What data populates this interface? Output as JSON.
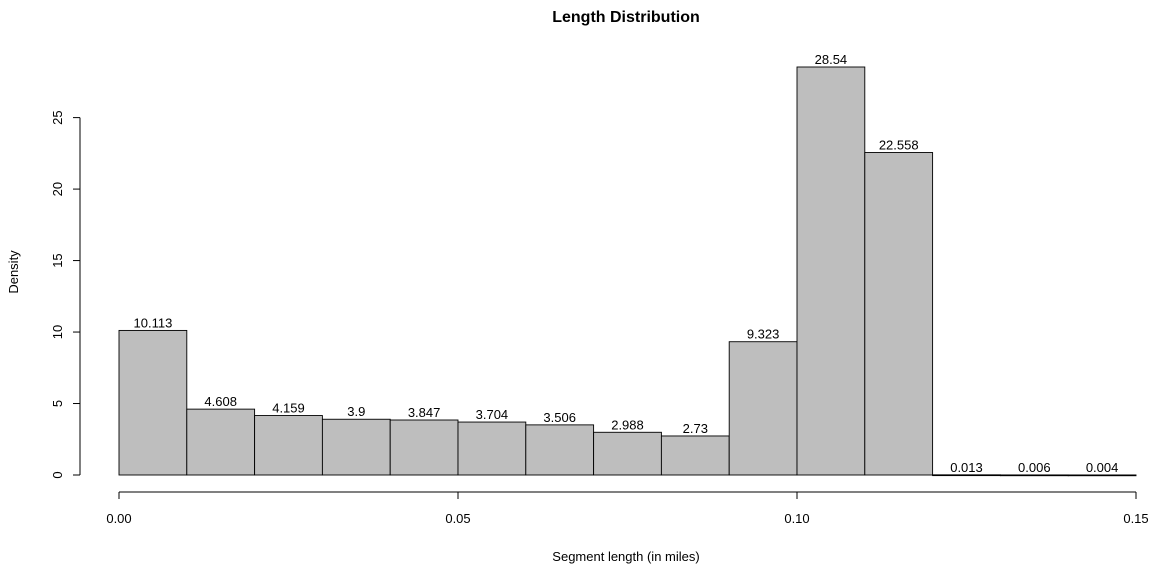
{
  "chart_data": {
    "type": "bar",
    "title": "Length Distribution",
    "xlabel": "Segment length (in miles)",
    "ylabel": "Density",
    "bin_edges": [
      0.0,
      0.01,
      0.02,
      0.03,
      0.04,
      0.05,
      0.06,
      0.07,
      0.08,
      0.09,
      0.1,
      0.11,
      0.12,
      0.13,
      0.14,
      0.15
    ],
    "values": [
      10.113,
      4.608,
      4.159,
      3.9,
      3.847,
      3.704,
      3.506,
      2.988,
      2.73,
      9.323,
      28.54,
      22.558,
      0.013,
      0.006,
      0.004
    ],
    "value_labels": [
      "10.113",
      "4.608",
      "4.159",
      "3.9",
      "3.847",
      "3.704",
      "3.506",
      "2.988",
      "2.73",
      "9.323",
      "28.54",
      "22.558",
      "0.013",
      "0.006",
      "0.004"
    ],
    "xlim": [
      0,
      0.15
    ],
    "ylim": [
      0,
      28.54
    ],
    "x_ticks": [
      0.0,
      0.05,
      0.1,
      0.15
    ],
    "x_tick_labels": [
      "0.00",
      "0.05",
      "0.10",
      "0.15"
    ],
    "y_ticks": [
      0,
      5,
      10,
      15,
      20,
      25
    ],
    "y_tick_labels": [
      "0",
      "5",
      "10",
      "15",
      "20",
      "25"
    ],
    "grid": false,
    "legend": "none",
    "bar_fill": "#bebebe",
    "bar_stroke": "#000000"
  }
}
